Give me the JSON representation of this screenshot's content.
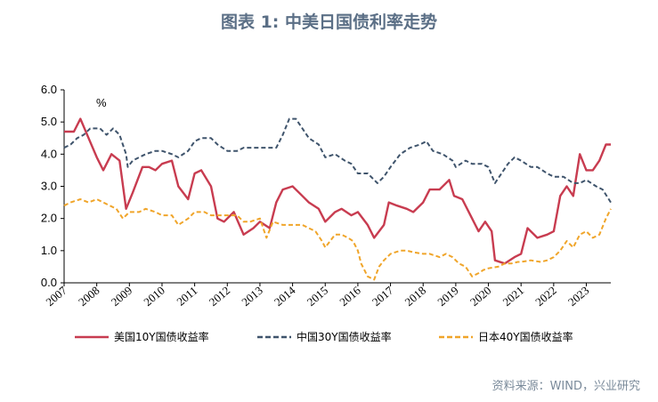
{
  "title": "图表 1: 中美日国债利率走势",
  "source": "资料来源：WIND，兴业研究",
  "colors": {
    "us10y": "#c83c50",
    "cn30y": "#3f546c",
    "jp40y": "#f0a52a"
  },
  "chart_data": {
    "type": "line",
    "title": "图表 1: 中美日国债利率走势",
    "unit_label": "%",
    "ylim": [
      0,
      6
    ],
    "yticks": [
      "0.0",
      "1.0",
      "2.0",
      "3.0",
      "4.0",
      "5.0",
      "6.0"
    ],
    "xlim": [
      2007,
      2023.75
    ],
    "xticks": [
      "2007",
      "2008",
      "2009",
      "2010",
      "2011",
      "2012",
      "2013",
      "2014",
      "2015",
      "2016",
      "2017",
      "2018",
      "2019",
      "2020",
      "2021",
      "2022",
      "2023"
    ],
    "grid": false,
    "legend_position": "bottom",
    "series": [
      {
        "name": "美国10Y国债收益率",
        "color": "#c83c50",
        "style": "solid",
        "points": [
          [
            2007.0,
            4.7
          ],
          [
            2007.3,
            4.7
          ],
          [
            2007.5,
            5.1
          ],
          [
            2007.75,
            4.5
          ],
          [
            2008.0,
            3.9
          ],
          [
            2008.2,
            3.5
          ],
          [
            2008.45,
            4.0
          ],
          [
            2008.7,
            3.8
          ],
          [
            2008.9,
            2.3
          ],
          [
            2009.1,
            2.8
          ],
          [
            2009.4,
            3.6
          ],
          [
            2009.6,
            3.6
          ],
          [
            2009.8,
            3.5
          ],
          [
            2010.0,
            3.7
          ],
          [
            2010.3,
            3.8
          ],
          [
            2010.5,
            3.0
          ],
          [
            2010.8,
            2.6
          ],
          [
            2011.0,
            3.4
          ],
          [
            2011.2,
            3.5
          ],
          [
            2011.5,
            3.0
          ],
          [
            2011.7,
            2.0
          ],
          [
            2011.9,
            1.9
          ],
          [
            2012.2,
            2.2
          ],
          [
            2012.5,
            1.5
          ],
          [
            2012.8,
            1.7
          ],
          [
            2013.0,
            1.9
          ],
          [
            2013.3,
            1.7
          ],
          [
            2013.5,
            2.5
          ],
          [
            2013.7,
            2.9
          ],
          [
            2014.0,
            3.0
          ],
          [
            2014.3,
            2.7
          ],
          [
            2014.5,
            2.5
          ],
          [
            2014.8,
            2.3
          ],
          [
            2015.0,
            1.9
          ],
          [
            2015.3,
            2.2
          ],
          [
            2015.5,
            2.3
          ],
          [
            2015.8,
            2.1
          ],
          [
            2016.0,
            2.2
          ],
          [
            2016.3,
            1.8
          ],
          [
            2016.5,
            1.4
          ],
          [
            2016.8,
            1.8
          ],
          [
            2016.95,
            2.5
          ],
          [
            2017.2,
            2.4
          ],
          [
            2017.5,
            2.3
          ],
          [
            2017.7,
            2.2
          ],
          [
            2018.0,
            2.5
          ],
          [
            2018.2,
            2.9
          ],
          [
            2018.5,
            2.9
          ],
          [
            2018.8,
            3.2
          ],
          [
            2018.95,
            2.7
          ],
          [
            2019.2,
            2.6
          ],
          [
            2019.5,
            2.0
          ],
          [
            2019.7,
            1.6
          ],
          [
            2019.9,
            1.9
          ],
          [
            2020.1,
            1.6
          ],
          [
            2020.2,
            0.7
          ],
          [
            2020.5,
            0.6
          ],
          [
            2020.8,
            0.8
          ],
          [
            2021.0,
            0.9
          ],
          [
            2021.2,
            1.7
          ],
          [
            2021.5,
            1.4
          ],
          [
            2021.8,
            1.5
          ],
          [
            2022.0,
            1.6
          ],
          [
            2022.2,
            2.7
          ],
          [
            2022.4,
            3.0
          ],
          [
            2022.6,
            2.7
          ],
          [
            2022.8,
            4.0
          ],
          [
            2023.0,
            3.5
          ],
          [
            2023.2,
            3.5
          ],
          [
            2023.4,
            3.8
          ],
          [
            2023.6,
            4.3
          ],
          [
            2023.75,
            4.3
          ]
        ]
      },
      {
        "name": "中国30Y国债收益率",
        "color": "#3f546c",
        "style": "dashed",
        "points": [
          [
            2007.0,
            4.2
          ],
          [
            2007.2,
            4.3
          ],
          [
            2007.4,
            4.5
          ],
          [
            2007.6,
            4.6
          ],
          [
            2007.8,
            4.8
          ],
          [
            2007.95,
            4.8
          ],
          [
            2008.1,
            4.8
          ],
          [
            2008.3,
            4.6
          ],
          [
            2008.5,
            4.8
          ],
          [
            2008.7,
            4.6
          ],
          [
            2008.9,
            4.0
          ],
          [
            2008.95,
            3.6
          ],
          [
            2009.1,
            3.8
          ],
          [
            2009.3,
            3.9
          ],
          [
            2009.5,
            4.0
          ],
          [
            2009.8,
            4.1
          ],
          [
            2010.0,
            4.1
          ],
          [
            2010.3,
            4.0
          ],
          [
            2010.5,
            3.9
          ],
          [
            2010.8,
            4.1
          ],
          [
            2011.0,
            4.4
          ],
          [
            2011.2,
            4.5
          ],
          [
            2011.5,
            4.5
          ],
          [
            2011.7,
            4.3
          ],
          [
            2012.0,
            4.1
          ],
          [
            2012.3,
            4.1
          ],
          [
            2012.5,
            4.2
          ],
          [
            2012.8,
            4.2
          ],
          [
            2013.0,
            4.2
          ],
          [
            2013.3,
            4.2
          ],
          [
            2013.5,
            4.2
          ],
          [
            2013.7,
            4.6
          ],
          [
            2013.9,
            5.1
          ],
          [
            2014.1,
            5.1
          ],
          [
            2014.3,
            4.8
          ],
          [
            2014.5,
            4.5
          ],
          [
            2014.8,
            4.3
          ],
          [
            2015.0,
            3.9
          ],
          [
            2015.3,
            4.0
          ],
          [
            2015.6,
            3.8
          ],
          [
            2015.8,
            3.7
          ],
          [
            2016.0,
            3.4
          ],
          [
            2016.3,
            3.4
          ],
          [
            2016.6,
            3.1
          ],
          [
            2016.8,
            3.3
          ],
          [
            2017.0,
            3.6
          ],
          [
            2017.3,
            4.0
          ],
          [
            2017.6,
            4.2
          ],
          [
            2017.9,
            4.3
          ],
          [
            2018.1,
            4.4
          ],
          [
            2018.3,
            4.1
          ],
          [
            2018.6,
            4.0
          ],
          [
            2018.9,
            3.8
          ],
          [
            2019.0,
            3.6
          ],
          [
            2019.3,
            3.8
          ],
          [
            2019.5,
            3.7
          ],
          [
            2019.8,
            3.7
          ],
          [
            2020.0,
            3.6
          ],
          [
            2020.2,
            3.1
          ],
          [
            2020.4,
            3.4
          ],
          [
            2020.6,
            3.7
          ],
          [
            2020.8,
            3.9
          ],
          [
            2021.0,
            3.8
          ],
          [
            2021.3,
            3.6
          ],
          [
            2021.5,
            3.6
          ],
          [
            2021.8,
            3.4
          ],
          [
            2022.0,
            3.3
          ],
          [
            2022.3,
            3.3
          ],
          [
            2022.6,
            3.1
          ],
          [
            2022.8,
            3.1
          ],
          [
            2023.0,
            3.2
          ],
          [
            2023.3,
            3.0
          ],
          [
            2023.5,
            2.9
          ],
          [
            2023.75,
            2.5
          ]
        ]
      },
      {
        "name": "日本40Y国债收益率",
        "color": "#f0a52a",
        "style": "dashed",
        "points": [
          [
            2007.0,
            2.4
          ],
          [
            2007.2,
            2.5
          ],
          [
            2007.5,
            2.6
          ],
          [
            2007.75,
            2.5
          ],
          [
            2008.0,
            2.6
          ],
          [
            2008.2,
            2.5
          ],
          [
            2008.4,
            2.4
          ],
          [
            2008.6,
            2.3
          ],
          [
            2008.8,
            2.0
          ],
          [
            2009.0,
            2.2
          ],
          [
            2009.3,
            2.2
          ],
          [
            2009.5,
            2.3
          ],
          [
            2009.8,
            2.2
          ],
          [
            2010.0,
            2.1
          ],
          [
            2010.3,
            2.1
          ],
          [
            2010.5,
            1.8
          ],
          [
            2010.8,
            2.0
          ],
          [
            2011.0,
            2.2
          ],
          [
            2011.3,
            2.2
          ],
          [
            2011.5,
            2.1
          ],
          [
            2011.8,
            2.1
          ],
          [
            2012.0,
            2.1
          ],
          [
            2012.3,
            2.1
          ],
          [
            2012.5,
            1.9
          ],
          [
            2012.7,
            1.9
          ],
          [
            2013.0,
            2.0
          ],
          [
            2013.2,
            1.4
          ],
          [
            2013.4,
            1.9
          ],
          [
            2013.7,
            1.8
          ],
          [
            2014.0,
            1.8
          ],
          [
            2014.3,
            1.8
          ],
          [
            2014.5,
            1.7
          ],
          [
            2014.7,
            1.6
          ],
          [
            2014.9,
            1.3
          ],
          [
            2015.0,
            1.1
          ],
          [
            2015.3,
            1.5
          ],
          [
            2015.5,
            1.5
          ],
          [
            2015.7,
            1.4
          ],
          [
            2015.85,
            1.3
          ],
          [
            2016.0,
            1.0
          ],
          [
            2016.1,
            0.6
          ],
          [
            2016.3,
            0.2
          ],
          [
            2016.5,
            0.1
          ],
          [
            2016.65,
            0.5
          ],
          [
            2016.8,
            0.7
          ],
          [
            2017.0,
            0.9
          ],
          [
            2017.3,
            1.0
          ],
          [
            2017.5,
            1.0
          ],
          [
            2017.7,
            0.95
          ],
          [
            2018.0,
            0.9
          ],
          [
            2018.2,
            0.9
          ],
          [
            2018.5,
            0.8
          ],
          [
            2018.7,
            0.9
          ],
          [
            2018.9,
            0.8
          ],
          [
            2019.1,
            0.6
          ],
          [
            2019.3,
            0.5
          ],
          [
            2019.5,
            0.2
          ],
          [
            2019.7,
            0.3
          ],
          [
            2019.85,
            0.4
          ],
          [
            2020.0,
            0.45
          ],
          [
            2020.3,
            0.5
          ],
          [
            2020.5,
            0.6
          ],
          [
            2020.7,
            0.6
          ],
          [
            2020.9,
            0.65
          ],
          [
            2021.0,
            0.65
          ],
          [
            2021.3,
            0.7
          ],
          [
            2021.6,
            0.65
          ],
          [
            2021.8,
            0.7
          ],
          [
            2022.0,
            0.8
          ],
          [
            2022.2,
            1.0
          ],
          [
            2022.4,
            1.3
          ],
          [
            2022.6,
            1.1
          ],
          [
            2022.8,
            1.5
          ],
          [
            2023.0,
            1.6
          ],
          [
            2023.2,
            1.4
          ],
          [
            2023.4,
            1.5
          ],
          [
            2023.6,
            2.0
          ],
          [
            2023.75,
            2.3
          ]
        ]
      }
    ]
  }
}
